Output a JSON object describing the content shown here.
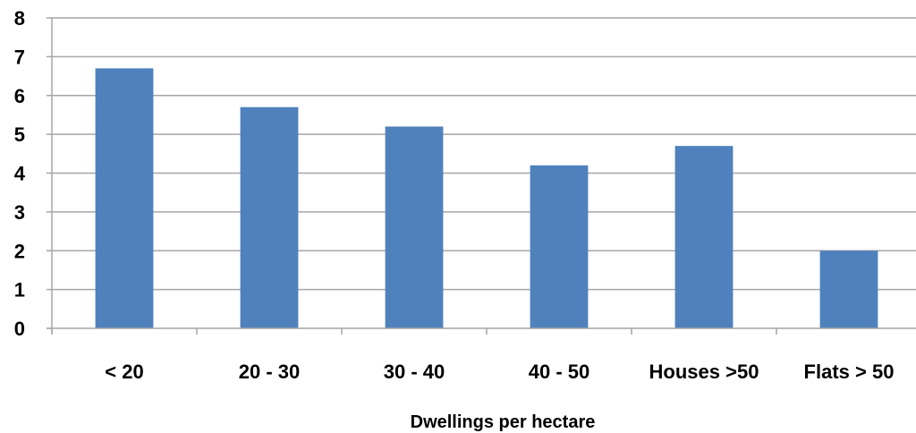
{
  "chart_data": {
    "type": "bar",
    "title": "",
    "xlabel": "Dwellings per hectare",
    "ylabel": "",
    "categories": [
      "< 20",
      "20 - 30",
      "30 - 40",
      "40 - 50",
      "Houses >50",
      "Flats > 50"
    ],
    "values": [
      6.7,
      5.7,
      5.2,
      4.2,
      4.7,
      2.0
    ],
    "ylim": [
      0,
      8
    ],
    "yticks": [
      "0",
      "1",
      "2",
      "3",
      "4",
      "5",
      "6",
      "7",
      "8"
    ],
    "grid": true,
    "bar_color": "#4f81bd",
    "grid_color": "#a6a6a6"
  }
}
